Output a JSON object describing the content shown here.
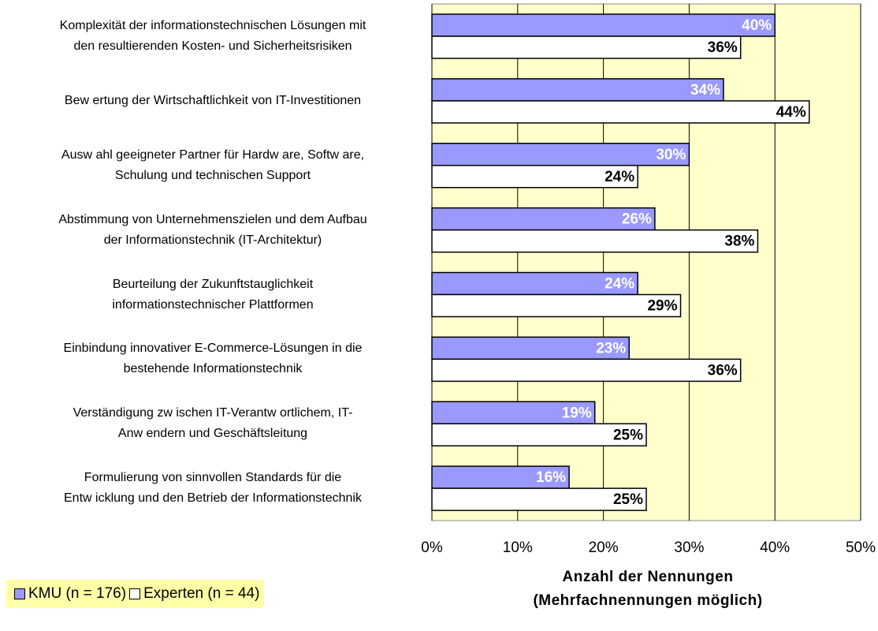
{
  "chart_data": {
    "type": "bar",
    "orientation": "horizontal",
    "categories": [
      "Komplexität der informationstechnischen Lösungen mit\nden resultierenden Kosten- und Sicherheitsrisiken",
      "Bew ertung der Wirtschaftlichkeit von IT-Investitionen",
      "Ausw ahl geeigneter Partner für Hardw are, Softw are,\nSchulung und technischen Support",
      "Abstimmung von Unternehmenszielen und dem Aufbau\nder Informationstechnik (IT-Architektur)",
      "Beurteilung der Zukunftstauglichkeit\ninformationstechnischer Plattformen",
      "Einbindung innovativer E-Commerce-Lösungen in die\nbestehende Informationstechnik",
      "Verständigung zw ischen IT-Verantw ortlichem, IT-\nAnw endern und Geschäftsleitung",
      "Formulierung von sinnvollen Standards für die\nEntw icklung und den Betrieb der Informationstechnik"
    ],
    "series": [
      {
        "name": "KMU (n = 176)",
        "color": "#9999ff",
        "label_color": "#ffffff",
        "values": [
          40,
          34,
          30,
          26,
          24,
          23,
          19,
          16
        ],
        "value_labels": [
          "40%",
          "34%",
          "30%",
          "26%",
          "24%",
          "23%",
          "19%",
          "16%"
        ]
      },
      {
        "name": "Experten (n = 44)",
        "color": "#ffffff",
        "label_color": "#000000",
        "values": [
          36,
          44,
          24,
          38,
          29,
          36,
          25,
          25
        ],
        "value_labels": [
          "36%",
          "44%",
          "24%",
          "38%",
          "29%",
          "36%",
          "25%",
          "25%"
        ]
      }
    ],
    "x_label": "Anzahl der Nennungen\n(Mehrfachnennungen möglich)",
    "xlim": [
      0,
      50
    ],
    "xticks": [
      {
        "value": 0,
        "label": "0%"
      },
      {
        "value": 10,
        "label": "10%"
      },
      {
        "value": 20,
        "label": "20%"
      },
      {
        "value": 30,
        "label": "30%"
      },
      {
        "value": 40,
        "label": "40%"
      },
      {
        "value": 50,
        "label": "50%"
      }
    ],
    "grid": true,
    "plot_background": "#ffffcc",
    "legend_position": "bottom-left"
  }
}
